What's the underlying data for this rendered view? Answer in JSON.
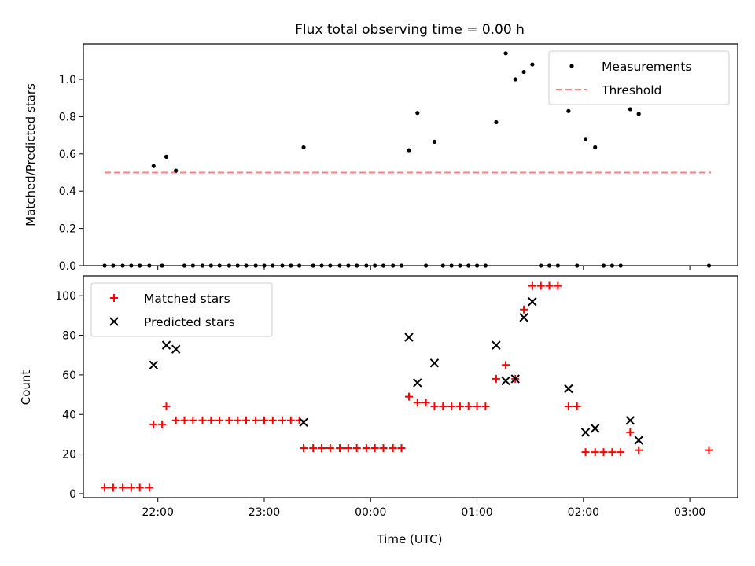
{
  "title": "Flux total observing time = 0.00 h",
  "colors": {
    "measurement": "#000000",
    "threshold": "#ff7f7f",
    "matched": "#ff0000",
    "predicted": "#000000"
  },
  "chart_data": [
    {
      "type": "scatter",
      "ylabel": "Matched/Predicted stars",
      "xlim": [
        21.3,
        27.45
      ],
      "ylim": [
        0,
        1.19
      ],
      "yticks": [
        0.0,
        0.2,
        0.4,
        0.6,
        0.8,
        1.0
      ],
      "ytick_labels": [
        "0.0",
        "0.2",
        "0.4",
        "0.6",
        "0.8",
        "1.0"
      ],
      "legend_position": "top-right",
      "threshold": {
        "name": "Threshold",
        "value": 0.5,
        "x_range": [
          21.5,
          27.2
        ],
        "style": "dashed"
      },
      "series": [
        {
          "name": "Measurements",
          "marker": "dot",
          "points": [
            [
              21.5,
              0
            ],
            [
              21.58,
              0
            ],
            [
              21.67,
              0
            ],
            [
              21.75,
              0
            ],
            [
              21.83,
              0
            ],
            [
              21.92,
              0
            ],
            [
              21.96,
              0.535
            ],
            [
              22.04,
              0
            ],
            [
              22.08,
              0.585
            ],
            [
              22.17,
              0.51
            ],
            [
              22.25,
              0
            ],
            [
              22.33,
              0
            ],
            [
              22.42,
              0
            ],
            [
              22.5,
              0
            ],
            [
              22.58,
              0
            ],
            [
              22.67,
              0
            ],
            [
              22.75,
              0
            ],
            [
              22.83,
              0
            ],
            [
              22.92,
              0
            ],
            [
              23.0,
              0
            ],
            [
              23.08,
              0
            ],
            [
              23.17,
              0
            ],
            [
              23.25,
              0
            ],
            [
              23.33,
              0
            ],
            [
              23.37,
              0.635
            ],
            [
              23.46,
              0
            ],
            [
              23.54,
              0
            ],
            [
              23.62,
              0
            ],
            [
              23.71,
              0
            ],
            [
              23.79,
              0
            ],
            [
              23.87,
              0
            ],
            [
              23.96,
              0
            ],
            [
              24.04,
              0
            ],
            [
              24.12,
              0
            ],
            [
              24.21,
              0
            ],
            [
              24.29,
              0
            ],
            [
              24.36,
              0.62
            ],
            [
              24.44,
              0.82
            ],
            [
              24.52,
              0
            ],
            [
              24.6,
              0.665
            ],
            [
              24.68,
              0
            ],
            [
              24.76,
              0
            ],
            [
              24.84,
              0
            ],
            [
              24.92,
              0
            ],
            [
              25.0,
              0
            ],
            [
              25.08,
              0
            ],
            [
              25.18,
              0.77
            ],
            [
              25.27,
              1.14
            ],
            [
              25.36,
              1.0
            ],
            [
              25.44,
              1.04
            ],
            [
              25.52,
              1.08
            ],
            [
              25.6,
              0
            ],
            [
              25.68,
              0
            ],
            [
              25.76,
              0
            ],
            [
              25.86,
              0.83
            ],
            [
              25.94,
              0
            ],
            [
              26.02,
              0.68
            ],
            [
              26.11,
              0.635
            ],
            [
              26.19,
              0
            ],
            [
              26.27,
              0
            ],
            [
              26.35,
              0
            ],
            [
              26.44,
              0.84
            ],
            [
              26.52,
              0.815
            ],
            [
              27.18,
              0
            ]
          ]
        }
      ]
    },
    {
      "type": "scatter",
      "xlabel": "Time (UTC)",
      "ylabel": "Count",
      "xlim": [
        21.3,
        27.45
      ],
      "ylim": [
        -2,
        110
      ],
      "xticks": [
        22,
        23,
        24,
        25,
        26,
        27
      ],
      "xtick_labels": [
        "22:00",
        "23:00",
        "00:00",
        "01:00",
        "02:00",
        "03:00"
      ],
      "yticks": [
        0,
        20,
        40,
        60,
        80,
        100
      ],
      "ytick_labels": [
        "0",
        "20",
        "40",
        "60",
        "80",
        "100"
      ],
      "legend_position": "top-left",
      "series": [
        {
          "name": "Matched stars",
          "marker": "plus",
          "points": [
            [
              21.5,
              3
            ],
            [
              21.58,
              3
            ],
            [
              21.67,
              3
            ],
            [
              21.75,
              3
            ],
            [
              21.83,
              3
            ],
            [
              21.92,
              3
            ],
            [
              21.96,
              35
            ],
            [
              22.04,
              35
            ],
            [
              22.08,
              44
            ],
            [
              22.17,
              37
            ],
            [
              22.25,
              37
            ],
            [
              22.33,
              37
            ],
            [
              22.42,
              37
            ],
            [
              22.5,
              37
            ],
            [
              22.58,
              37
            ],
            [
              22.67,
              37
            ],
            [
              22.75,
              37
            ],
            [
              22.83,
              37
            ],
            [
              22.92,
              37
            ],
            [
              23.0,
              37
            ],
            [
              23.08,
              37
            ],
            [
              23.17,
              37
            ],
            [
              23.25,
              37
            ],
            [
              23.33,
              37
            ],
            [
              23.37,
              23
            ],
            [
              23.46,
              23
            ],
            [
              23.54,
              23
            ],
            [
              23.62,
              23
            ],
            [
              23.71,
              23
            ],
            [
              23.79,
              23
            ],
            [
              23.87,
              23
            ],
            [
              23.96,
              23
            ],
            [
              24.04,
              23
            ],
            [
              24.12,
              23
            ],
            [
              24.21,
              23
            ],
            [
              24.29,
              23
            ],
            [
              24.36,
              49
            ],
            [
              24.44,
              46
            ],
            [
              24.52,
              46
            ],
            [
              24.6,
              44
            ],
            [
              24.68,
              44
            ],
            [
              24.76,
              44
            ],
            [
              24.84,
              44
            ],
            [
              24.92,
              44
            ],
            [
              25.0,
              44
            ],
            [
              25.08,
              44
            ],
            [
              25.18,
              58
            ],
            [
              25.27,
              65
            ],
            [
              25.36,
              58
            ],
            [
              25.44,
              93
            ],
            [
              25.52,
              105
            ],
            [
              25.6,
              105
            ],
            [
              25.68,
              105
            ],
            [
              25.76,
              105
            ],
            [
              25.86,
              44
            ],
            [
              25.94,
              44
            ],
            [
              26.02,
              21
            ],
            [
              26.11,
              21
            ],
            [
              26.19,
              21
            ],
            [
              26.27,
              21
            ],
            [
              26.35,
              21
            ],
            [
              26.44,
              31
            ],
            [
              26.52,
              22
            ],
            [
              27.18,
              22
            ]
          ]
        },
        {
          "name": "Predicted stars",
          "marker": "x",
          "points": [
            [
              21.96,
              65
            ],
            [
              22.08,
              75
            ],
            [
              22.17,
              73
            ],
            [
              23.37,
              36
            ],
            [
              24.36,
              79
            ],
            [
              24.44,
              56
            ],
            [
              24.6,
              66
            ],
            [
              25.18,
              75
            ],
            [
              25.27,
              57
            ],
            [
              25.36,
              58
            ],
            [
              25.44,
              89
            ],
            [
              25.52,
              97
            ],
            [
              25.86,
              53
            ],
            [
              26.02,
              31
            ],
            [
              26.11,
              33
            ],
            [
              26.44,
              37
            ],
            [
              26.52,
              27
            ]
          ]
        }
      ]
    }
  ]
}
